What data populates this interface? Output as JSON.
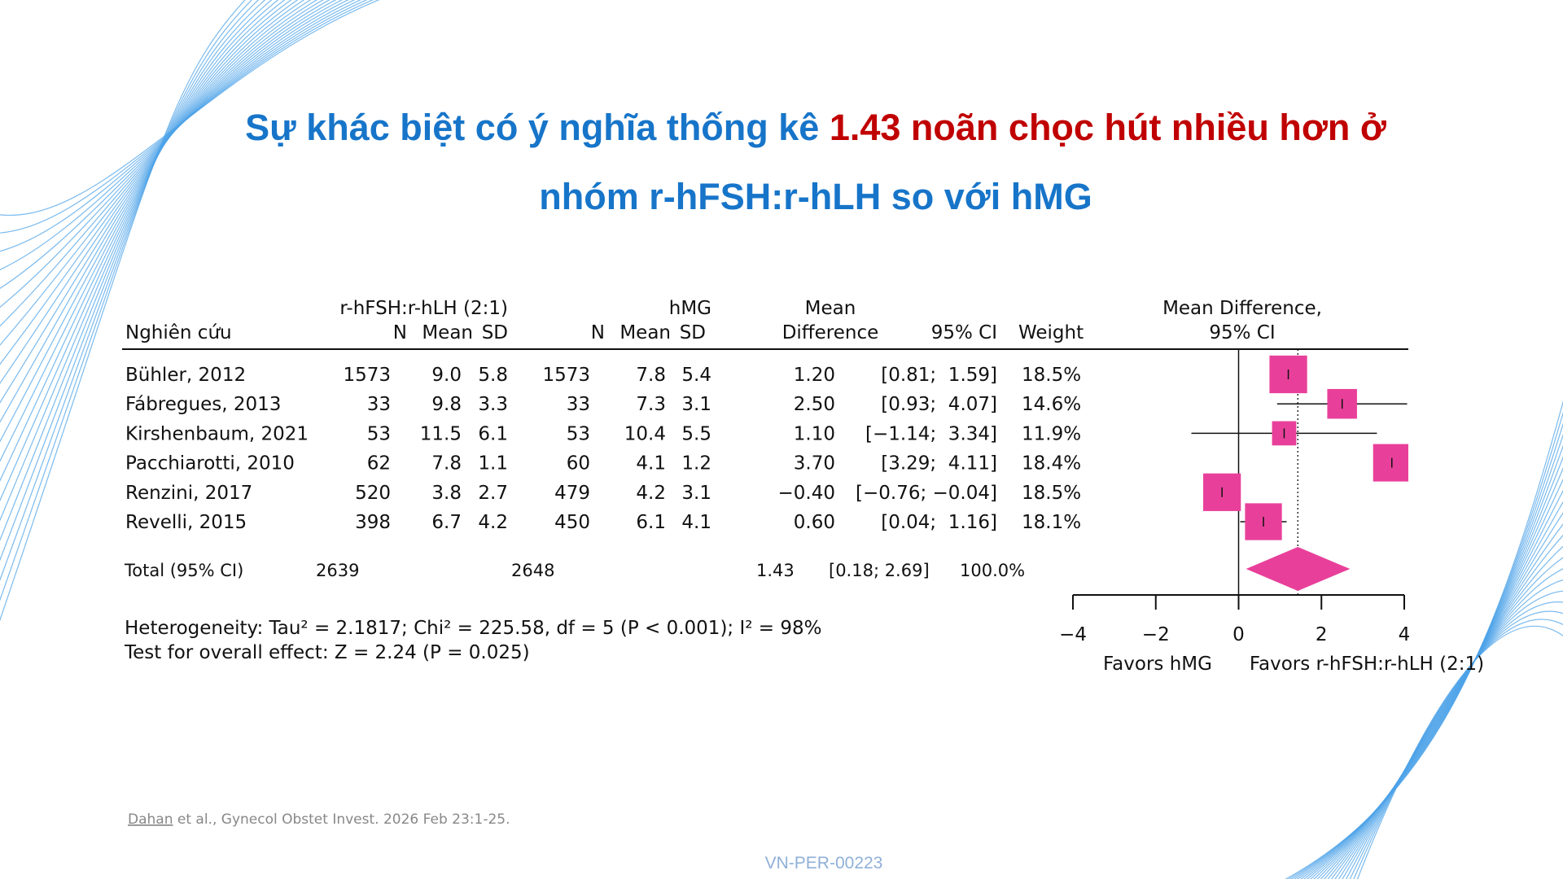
{
  "title": {
    "lead": "Sự khác biệt có ý nghĩa thống kê",
    "highlight": "1.43 noãn chọc hút nhiều hơn ở",
    "line2": "nhóm r-hFSH:r-hLH so với hMG"
  },
  "chart_data": {
    "type": "forest",
    "columns": {
      "study": "Nghiên cứu",
      "group1": "r-hFSH:r-hLH (2:1)",
      "group2": "hMG",
      "n": "N",
      "mean": "Mean",
      "sd": "SD",
      "md_line1": "Mean",
      "md_line2": "Difference",
      "ci": "95% CI",
      "weight": "Weight",
      "plot_line1": "Mean Difference,",
      "plot_line2": "95% CI"
    },
    "studies": [
      {
        "name": "Bühler, 2012",
        "n1": "1573",
        "mean1": "9.0",
        "sd1": "5.8",
        "n2": "1573",
        "mean2": "7.8",
        "sd2": "5.4",
        "md": 1.2,
        "md_label": "1.20",
        "ci": [
          0.81,
          1.59
        ],
        "ci_label": "[0.81;  1.59]",
        "weight": 18.5,
        "weight_label": "18.5%"
      },
      {
        "name": "Fábregues, 2013",
        "n1": "33",
        "mean1": "9.8",
        "sd1": "3.3",
        "n2": "33",
        "mean2": "7.3",
        "sd2": "3.1",
        "md": 2.5,
        "md_label": "2.50",
        "ci": [
          0.93,
          4.07
        ],
        "ci_label": "[0.93;  4.07]",
        "weight": 14.6,
        "weight_label": "14.6%"
      },
      {
        "name": "Kirshenbaum, 2021",
        "n1": "53",
        "mean1": "11.5",
        "sd1": "6.1",
        "n2": "53",
        "mean2": "10.4",
        "sd2": "5.5",
        "md": 1.1,
        "md_label": "1.10",
        "ci": [
          -1.14,
          3.34
        ],
        "ci_label": "[−1.14;  3.34]",
        "weight": 11.9,
        "weight_label": "11.9%"
      },
      {
        "name": "Pacchiarotti, 2010",
        "n1": "62",
        "mean1": "7.8",
        "sd1": "1.1",
        "n2": "60",
        "mean2": "4.1",
        "sd2": "1.2",
        "md": 3.7,
        "md_label": "3.70",
        "ci": [
          3.29,
          4.11
        ],
        "ci_label": "[3.29;  4.11]",
        "weight": 18.4,
        "weight_label": "18.4%"
      },
      {
        "name": "Renzini, 2017",
        "n1": "520",
        "mean1": "3.8",
        "sd1": "2.7",
        "n2": "479",
        "mean2": "4.2",
        "sd2": "3.1",
        "md": -0.4,
        "md_label": "−0.40",
        "ci": [
          -0.76,
          -0.04
        ],
        "ci_label": "[−0.76; −0.04]",
        "weight": 18.5,
        "weight_label": "18.5%"
      },
      {
        "name": "Revelli, 2015",
        "n1": "398",
        "mean1": "6.7",
        "sd1": "4.2",
        "n2": "450",
        "mean2": "6.1",
        "sd2": "4.1",
        "md": 0.6,
        "md_label": "0.60",
        "ci": [
          0.04,
          1.16
        ],
        "ci_label": "[0.04;  1.16]",
        "weight": 18.1,
        "weight_label": "18.1%"
      }
    ],
    "total": {
      "name": "Total (95% CI)",
      "n1": "2639",
      "n2": "2648",
      "md": 1.43,
      "md_label": "1.43",
      "ci": [
        0.18,
        2.69
      ],
      "ci_label": "[0.18; 2.69]",
      "weight": 100,
      "weight_label": "100.0%"
    },
    "heterogeneity": "Heterogeneity: Tau² = 2.1817; Chi² = 225.58, df = 5 (P < 0.001); I² = 98%",
    "overall_effect": "Test for overall effect: Z = 2.24 (P = 0.025)",
    "xlim": [
      -4,
      4
    ],
    "xticks": [
      {
        "value": -4,
        "label": "−4"
      },
      {
        "value": -2,
        "label": "−2"
      },
      0,
      2,
      4
    ],
    "xlabel_left": "Favors hMG",
    "xlabel_right": "Favors r-hFSH:r-hLH (2:1)",
    "color": "#e8409a"
  },
  "footnote": {
    "author": "Dahan",
    "citation": "et al., Gynecol Obstet Invest. 2026 Feb 23:1-25."
  },
  "code": "VN-PER-00223"
}
